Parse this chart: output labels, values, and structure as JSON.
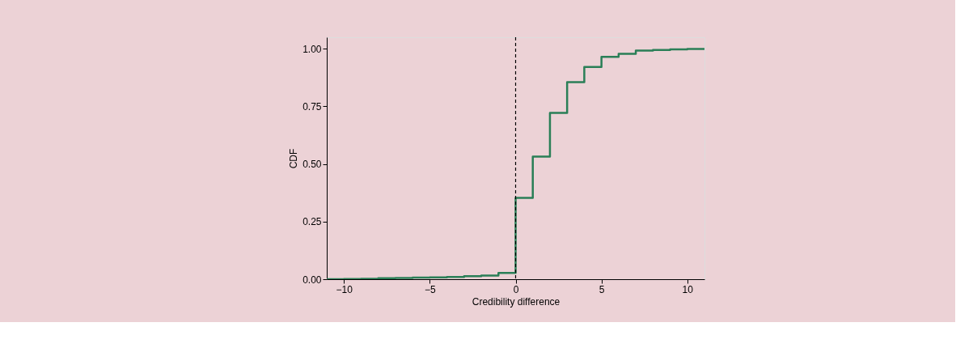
{
  "chart_data": {
    "type": "step",
    "xlabel": "Credibility difference",
    "ylabel": "CDF",
    "x": [
      -11,
      -10,
      -9,
      -8,
      -7,
      -6,
      -5,
      -4,
      -3,
      -2,
      -1,
      0,
      1,
      2,
      3,
      4,
      5,
      6,
      7,
      8,
      9,
      10,
      11
    ],
    "series": [
      {
        "color": "#2a7f57",
        "values": [
          0.0,
          0.001,
          0.002,
          0.004,
          0.005,
          0.007,
          0.008,
          0.01,
          0.013,
          0.016,
          0.027,
          0.353,
          0.532,
          0.722,
          0.855,
          0.921,
          0.965,
          0.978,
          0.992,
          0.995,
          0.997,
          0.999,
          1.0
        ]
      }
    ],
    "xlim": [
      -11,
      11
    ],
    "xticks": [
      {
        "value": -10,
        "label": "−10"
      },
      {
        "value": -5,
        "label": "−5"
      },
      0,
      5,
      10
    ],
    "ylim": [
      0,
      1.05
    ],
    "yticks": [
      {
        "value": 0,
        "label": "0.00"
      },
      {
        "value": 0.25,
        "label": "0.25"
      },
      {
        "value": 0.5,
        "label": "0.50"
      },
      {
        "value": 0.75,
        "label": "0.75"
      },
      {
        "value": 1,
        "label": "1.00"
      }
    ],
    "ref_lines": [
      {
        "axis": "x",
        "value": 0,
        "color": "#000000",
        "line_style": "dashed"
      }
    ],
    "grid": false,
    "line_style": "solid"
  }
}
